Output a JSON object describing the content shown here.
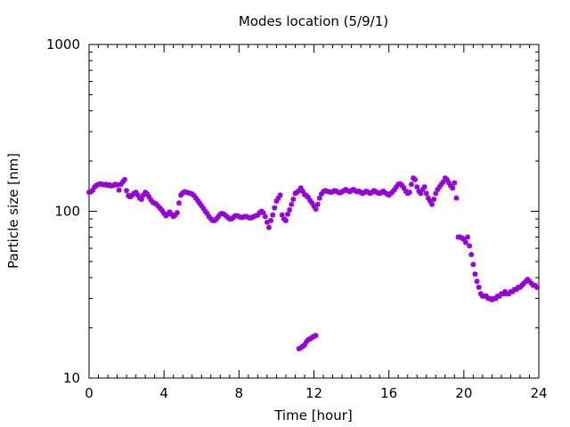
{
  "chart_data": {
    "type": "scatter",
    "title": "Modes location (5/9/1)",
    "xlabel": "Time [hour]",
    "ylabel": "Particle size [nm]",
    "xlim": [
      0,
      24
    ],
    "ylim": [
      10,
      1000
    ],
    "yscale": "log",
    "grid": false,
    "marker_color": "#9400d3",
    "x_ticks": [
      0,
      4,
      8,
      12,
      16,
      20,
      24
    ],
    "x_tick_labels": [
      "0",
      "4",
      "8",
      "12",
      "16",
      "20",
      "24"
    ],
    "y_ticks": [
      10,
      100,
      1000
    ],
    "y_tick_labels": [
      "10",
      "100",
      "1000"
    ],
    "series": [
      {
        "points": [
          [
            0.0,
            130
          ],
          [
            0.1,
            131
          ],
          [
            0.2,
            134
          ],
          [
            0.3,
            140
          ],
          [
            0.4,
            143
          ],
          [
            0.5,
            145
          ],
          [
            0.6,
            146
          ],
          [
            0.7,
            145
          ],
          [
            0.8,
            144
          ],
          [
            0.9,
            145
          ],
          [
            1.0,
            143
          ],
          [
            1.1,
            144
          ],
          [
            1.2,
            142
          ],
          [
            1.3,
            143
          ],
          [
            1.4,
            145
          ],
          [
            1.5,
            144
          ],
          [
            1.6,
            134
          ],
          [
            1.7,
            145
          ],
          [
            1.8,
            150
          ],
          [
            1.9,
            155
          ],
          [
            2.0,
            133
          ],
          [
            2.1,
            124
          ],
          [
            2.2,
            122
          ],
          [
            2.3,
            125
          ],
          [
            2.4,
            128
          ],
          [
            2.5,
            130
          ],
          [
            2.6,
            125
          ],
          [
            2.7,
            120
          ],
          [
            2.8,
            118
          ],
          [
            2.9,
            125
          ],
          [
            3.0,
            130
          ],
          [
            3.1,
            127
          ],
          [
            3.2,
            122
          ],
          [
            3.3,
            117
          ],
          [
            3.4,
            113
          ],
          [
            3.5,
            112
          ],
          [
            3.6,
            110
          ],
          [
            3.7,
            107
          ],
          [
            3.8,
            104
          ],
          [
            3.9,
            101
          ],
          [
            4.0,
            97
          ],
          [
            4.1,
            94
          ],
          [
            4.2,
            96
          ],
          [
            4.3,
            99
          ],
          [
            4.4,
            96
          ],
          [
            4.5,
            93
          ],
          [
            4.6,
            95
          ],
          [
            4.7,
            98
          ],
          [
            4.8,
            112
          ],
          [
            4.9,
            125
          ],
          [
            5.0,
            129
          ],
          [
            5.1,
            131
          ],
          [
            5.2,
            130
          ],
          [
            5.3,
            129
          ],
          [
            5.4,
            128
          ],
          [
            5.5,
            127
          ],
          [
            5.6,
            124
          ],
          [
            5.7,
            120
          ],
          [
            5.8,
            116
          ],
          [
            5.9,
            112
          ],
          [
            6.0,
            108
          ],
          [
            6.1,
            104
          ],
          [
            6.2,
            100
          ],
          [
            6.3,
            97
          ],
          [
            6.4,
            93
          ],
          [
            6.5,
            90
          ],
          [
            6.6,
            88
          ],
          [
            6.7,
            88
          ],
          [
            6.8,
            90
          ],
          [
            6.9,
            93
          ],
          [
            7.0,
            96
          ],
          [
            7.1,
            97
          ],
          [
            7.2,
            96
          ],
          [
            7.3,
            94
          ],
          [
            7.4,
            92
          ],
          [
            7.5,
            90
          ],
          [
            7.6,
            90
          ],
          [
            7.7,
            92
          ],
          [
            7.8,
            94
          ],
          [
            7.9,
            94
          ],
          [
            8.0,
            93
          ],
          [
            8.1,
            92
          ],
          [
            8.2,
            92
          ],
          [
            8.3,
            93
          ],
          [
            8.4,
            93
          ],
          [
            8.5,
            92
          ],
          [
            8.6,
            91
          ],
          [
            8.7,
            92
          ],
          [
            8.8,
            93
          ],
          [
            8.9,
            94
          ],
          [
            9.0,
            95
          ],
          [
            9.1,
            98
          ],
          [
            9.2,
            100
          ],
          [
            9.3,
            98
          ],
          [
            9.4,
            93
          ],
          [
            9.5,
            86
          ],
          [
            9.6,
            80
          ],
          [
            9.7,
            88
          ],
          [
            9.8,
            95
          ],
          [
            9.9,
            105
          ],
          [
            10.0,
            115
          ],
          [
            10.1,
            120
          ],
          [
            10.2,
            125
          ],
          [
            10.3,
            95
          ],
          [
            10.4,
            90
          ],
          [
            10.5,
            88
          ],
          [
            10.6,
            96
          ],
          [
            10.7,
            102
          ],
          [
            10.8,
            110
          ],
          [
            10.9,
            118
          ],
          [
            11.0,
            128
          ],
          [
            11.1,
            130
          ],
          [
            11.2,
            133
          ],
          [
            11.3,
            138
          ],
          [
            11.4,
            132
          ],
          [
            11.5,
            126
          ],
          [
            11.6,
            124
          ],
          [
            11.7,
            121
          ],
          [
            11.8,
            116
          ],
          [
            11.9,
            112
          ],
          [
            12.0,
            107
          ],
          [
            12.1,
            103
          ],
          [
            12.2,
            110
          ],
          [
            12.3,
            120
          ],
          [
            12.4,
            127
          ],
          [
            12.5,
            131
          ],
          [
            12.6,
            133
          ],
          [
            12.7,
            132
          ],
          [
            12.8,
            131
          ],
          [
            12.9,
            130
          ],
          [
            13.0,
            131
          ],
          [
            13.1,
            133
          ],
          [
            13.2,
            132
          ],
          [
            13.3,
            130
          ],
          [
            13.4,
            129
          ],
          [
            13.5,
            131
          ],
          [
            13.6,
            133
          ],
          [
            13.7,
            135
          ],
          [
            13.8,
            133
          ],
          [
            13.9,
            131
          ],
          [
            14.0,
            133
          ],
          [
            14.1,
            135
          ],
          [
            14.2,
            133
          ],
          [
            14.3,
            131
          ],
          [
            14.4,
            132
          ],
          [
            14.5,
            130
          ],
          [
            14.6,
            128
          ],
          [
            14.7,
            130
          ],
          [
            14.8,
            132
          ],
          [
            14.9,
            130
          ],
          [
            15.0,
            128
          ],
          [
            15.1,
            130
          ],
          [
            15.2,
            133
          ],
          [
            15.3,
            131
          ],
          [
            15.4,
            129
          ],
          [
            15.5,
            128
          ],
          [
            15.6,
            130
          ],
          [
            15.7,
            132
          ],
          [
            15.8,
            129
          ],
          [
            15.9,
            127
          ],
          [
            16.0,
            125
          ],
          [
            16.1,
            128
          ],
          [
            16.2,
            131
          ],
          [
            16.3,
            135
          ],
          [
            16.4,
            140
          ],
          [
            16.5,
            145
          ],
          [
            16.6,
            146
          ],
          [
            16.7,
            143
          ],
          [
            16.8,
            138
          ],
          [
            16.9,
            132
          ],
          [
            17.0,
            128
          ],
          [
            17.1,
            130
          ],
          [
            17.2,
            145
          ],
          [
            17.3,
            158
          ],
          [
            17.4,
            155
          ],
          [
            17.5,
            140
          ],
          [
            17.6,
            132
          ],
          [
            17.7,
            128
          ],
          [
            17.8,
            135
          ],
          [
            17.9,
            140
          ],
          [
            18.0,
            128
          ],
          [
            18.1,
            120
          ],
          [
            18.2,
            115
          ],
          [
            18.3,
            110
          ],
          [
            18.4,
            118
          ],
          [
            18.5,
            128
          ],
          [
            18.6,
            135
          ],
          [
            18.7,
            140
          ],
          [
            18.8,
            145
          ],
          [
            18.9,
            150
          ],
          [
            19.0,
            158
          ],
          [
            19.1,
            155
          ],
          [
            19.2,
            148
          ],
          [
            19.3,
            142
          ],
          [
            19.4,
            138
          ],
          [
            19.5,
            148
          ],
          [
            19.6,
            120
          ],
          [
            19.7,
            70
          ],
          [
            19.8,
            70
          ],
          [
            19.9,
            69
          ],
          [
            20.0,
            68
          ],
          [
            20.1,
            65
          ],
          [
            20.2,
            70
          ],
          [
            20.3,
            62
          ],
          [
            20.4,
            55
          ],
          [
            20.5,
            48
          ],
          [
            20.6,
            42
          ],
          [
            20.7,
            38
          ],
          [
            20.8,
            35
          ],
          [
            20.9,
            32
          ],
          [
            21.0,
            31
          ],
          [
            21.1,
            31
          ],
          [
            21.2,
            31
          ],
          [
            21.3,
            30
          ],
          [
            21.4,
            30
          ],
          [
            21.5,
            29.5
          ],
          [
            21.6,
            30
          ],
          [
            21.7,
            30
          ],
          [
            21.8,
            31
          ],
          [
            21.9,
            31
          ],
          [
            22.0,
            32
          ],
          [
            22.1,
            32
          ],
          [
            22.2,
            33
          ],
          [
            22.3,
            32
          ],
          [
            22.4,
            32
          ],
          [
            22.5,
            33
          ],
          [
            22.6,
            33
          ],
          [
            22.7,
            34
          ],
          [
            22.8,
            34
          ],
          [
            22.9,
            35
          ],
          [
            23.0,
            35
          ],
          [
            23.1,
            36
          ],
          [
            23.2,
            37
          ],
          [
            23.3,
            38
          ],
          [
            23.4,
            39
          ],
          [
            23.5,
            38
          ],
          [
            23.6,
            37
          ],
          [
            23.7,
            36
          ],
          [
            23.8,
            36
          ],
          [
            23.9,
            35
          ],
          [
            11.2,
            15
          ],
          [
            11.3,
            15.2
          ],
          [
            11.4,
            15.5
          ],
          [
            11.5,
            15.8
          ],
          [
            11.6,
            16.5
          ],
          [
            11.7,
            17
          ],
          [
            11.8,
            17.2
          ],
          [
            11.9,
            17.5
          ],
          [
            12.0,
            17.8
          ],
          [
            12.1,
            18
          ]
        ]
      }
    ]
  }
}
